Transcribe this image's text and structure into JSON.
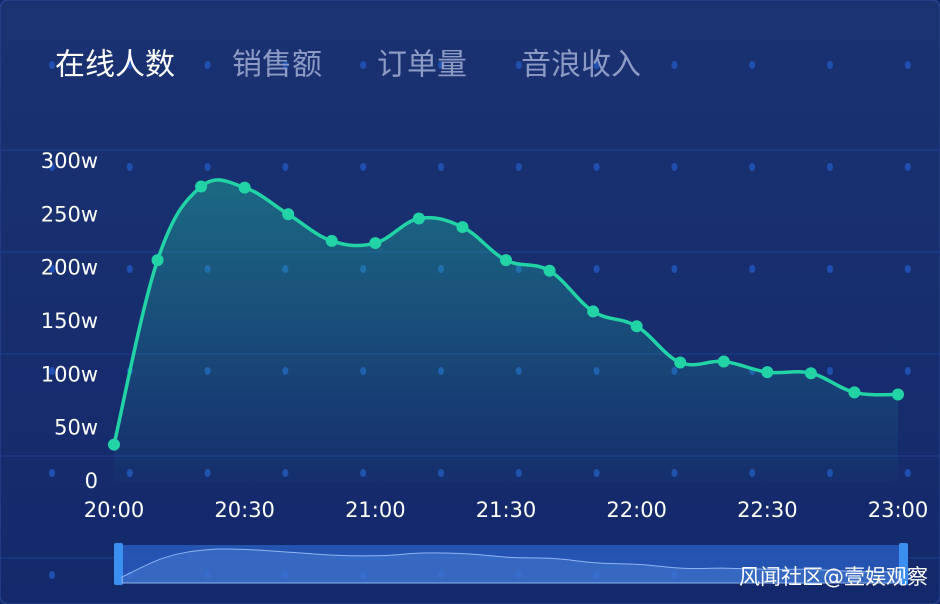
{
  "tabs": [
    "在线人数",
    "销售额",
    "订单量",
    "音浪收入"
  ],
  "active_tab": 0,
  "watermark": "风闻社区@壹娱观察",
  "chart_data": {
    "type": "line",
    "categories": [
      "20:00",
      null,
      null,
      "20:30",
      null,
      null,
      "21:00",
      null,
      null,
      "21:30",
      null,
      null,
      "22:00",
      null,
      null,
      "22:30",
      null,
      null,
      "23:00"
    ],
    "series": [
      {
        "name": "在线人数",
        "color": "#22d3a6",
        "values": [
          35,
          208,
          277,
          276,
          251,
          226,
          224,
          247,
          239,
          208,
          198,
          160,
          146,
          112,
          113,
          103,
          102,
          84,
          82
        ]
      }
    ],
    "ylim": [
      0,
      300
    ],
    "yticks": [
      0,
      {
        "value": 50,
        "label": "50w"
      },
      {
        "value": 100,
        "label": "100w"
      },
      {
        "value": 150,
        "label": "150w"
      },
      {
        "value": 200,
        "label": "200w"
      },
      {
        "value": 250,
        "label": "250w"
      },
      {
        "value": 300,
        "label": "300w"
      }
    ],
    "grid": false
  }
}
